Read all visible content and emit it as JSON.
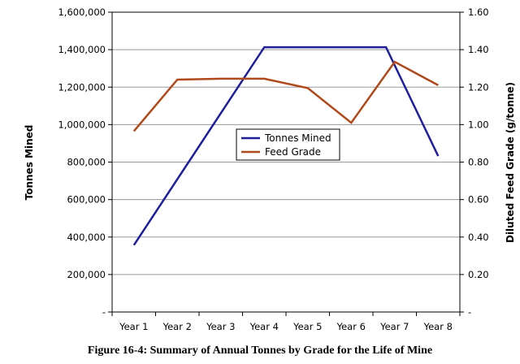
{
  "caption": "Figure 16-4: Summary of Annual Tonnes by Grade for the Life of Mine",
  "chart_data": {
    "type": "line",
    "title": "",
    "categories": [
      "Year 1",
      "Year 2",
      "Year 3",
      "Year 4",
      "Year 5",
      "Year 6",
      "Year 7",
      "Year 8"
    ],
    "ylabel": "Tonnes Mined",
    "y2label": "Diluted Feed Grade (g/tonne)",
    "ylim": [
      0,
      1600000
    ],
    "y2lim": [
      0,
      1.6
    ],
    "y_ticks": [
      "-",
      "200,000",
      "400,000",
      "600,000",
      "800,000",
      "1,000,000",
      "1,200,000",
      "1,400,000",
      "1,600,000"
    ],
    "y2_ticks": [
      "-",
      "0.20",
      "0.40",
      "0.60",
      "0.80",
      "1.00",
      "1.20",
      "1.40",
      "1.60"
    ],
    "grid": true,
    "legend_position": "center",
    "series": [
      {
        "name": "Tonnes Mined",
        "axis": "left",
        "color": "#1f1f9e",
        "x": [
          1,
          4,
          6.8,
          8
        ],
        "values": [
          357000,
          1413000,
          1413000,
          832000
        ]
      },
      {
        "name": "Feed Grade",
        "axis": "right",
        "color": "#b04a1a",
        "x": [
          1,
          2,
          3,
          4,
          5,
          6,
          7,
          8
        ],
        "values": [
          0.965,
          1.24,
          1.245,
          1.245,
          1.195,
          1.01,
          1.335,
          1.21
        ]
      }
    ]
  }
}
